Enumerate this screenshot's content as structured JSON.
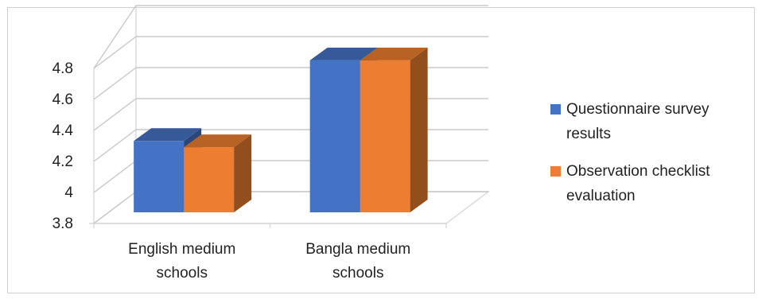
{
  "chart_data": {
    "type": "bar",
    "style": "3d-clustered-column",
    "categories": [
      [
        "English medium",
        "schools"
      ],
      [
        "Bangla medium",
        "schools"
      ]
    ],
    "series": [
      {
        "name": [
          "Questionnaire survey",
          "results"
        ],
        "color": "#4472C4",
        "values": [
          4.26,
          4.78
        ]
      },
      {
        "name": [
          "Observation checklist",
          "evaluation"
        ],
        "color": "#ED7D31",
        "values": [
          4.22,
          4.78
        ]
      }
    ],
    "yticks": [
      "3.8",
      "4",
      "4.2",
      "4.4",
      "4.6",
      "4.8"
    ],
    "ylim": [
      3.8,
      4.8
    ],
    "grid": true,
    "legend_position": "right"
  }
}
